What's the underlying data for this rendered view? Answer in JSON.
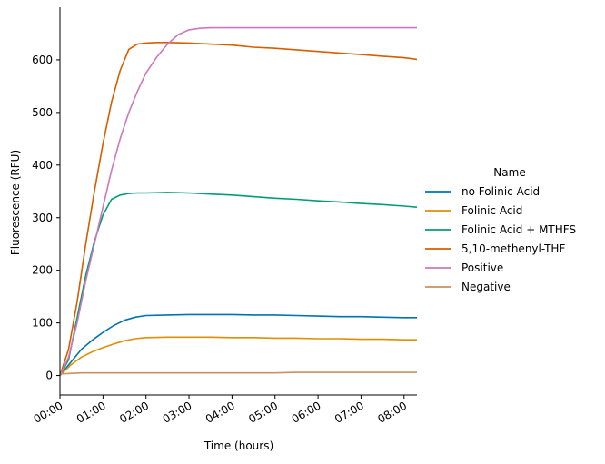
{
  "chart_data": {
    "type": "line",
    "xlabel": "Time (hours)",
    "ylabel": "Fluorescence (RFU)",
    "xlim": [
      0,
      8.3
    ],
    "ylim": [
      -37,
      700
    ],
    "x_ticks": [
      0,
      1,
      2,
      3,
      4,
      5,
      6,
      7,
      8
    ],
    "x_tick_labels": [
      "00:00",
      "01:00",
      "02:00",
      "03:00",
      "04:00",
      "05:00",
      "06:00",
      "07:00",
      "08:00"
    ],
    "y_ticks": [
      0,
      100,
      200,
      300,
      400,
      500,
      600
    ],
    "y_tick_labels": [
      "0",
      "100",
      "200",
      "300",
      "400",
      "500",
      "600"
    ],
    "legend": {
      "title": "Name",
      "placement": "right"
    },
    "series": [
      {
        "name": "no Folinic Acid",
        "color": "#0173b2",
        "x": [
          0,
          0.25,
          0.5,
          0.75,
          1.0,
          1.25,
          1.5,
          1.75,
          2.0,
          2.5,
          3.0,
          3.5,
          4.0,
          4.5,
          5.0,
          5.5,
          6.0,
          6.5,
          7.0,
          7.5,
          8.0,
          8.3
        ],
        "y": [
          0,
          25,
          50,
          67,
          82,
          95,
          105,
          111,
          114,
          115,
          116,
          116,
          116,
          115,
          115,
          114,
          113,
          112,
          112,
          111,
          110,
          110
        ]
      },
      {
        "name": "Folinic Acid",
        "color": "#de8f05",
        "x": [
          0,
          0.25,
          0.5,
          0.75,
          1.0,
          1.25,
          1.5,
          1.75,
          2.0,
          2.5,
          3.0,
          3.5,
          4.0,
          4.5,
          5.0,
          5.5,
          6.0,
          6.5,
          7.0,
          7.5,
          8.0,
          8.3
        ],
        "y": [
          0,
          20,
          35,
          45,
          53,
          60,
          66,
          70,
          72,
          73,
          73,
          73,
          72,
          72,
          71,
          71,
          70,
          70,
          69,
          69,
          68,
          68
        ]
      },
      {
        "name": "Folinic Acid + MTHFS",
        "color": "#029e73",
        "x": [
          0,
          0.2,
          0.4,
          0.6,
          0.8,
          1.0,
          1.2,
          1.4,
          1.6,
          1.8,
          2.0,
          2.5,
          3.0,
          3.5,
          4.0,
          4.5,
          5.0,
          5.5,
          6.0,
          6.5,
          7.0,
          7.5,
          8.0,
          8.3
        ],
        "y": [
          0,
          30,
          110,
          190,
          255,
          305,
          335,
          343,
          346,
          347,
          347,
          348,
          347,
          345,
          343,
          340,
          337,
          335,
          332,
          330,
          327,
          325,
          322,
          320
        ]
      },
      {
        "name": "5,10-methenyl-THF",
        "color": "#d55e00",
        "x": [
          0,
          0.2,
          0.4,
          0.6,
          0.8,
          1.0,
          1.2,
          1.4,
          1.6,
          1.8,
          2.0,
          2.25,
          2.5,
          3.0,
          3.5,
          4.0,
          4.5,
          5.0,
          5.5,
          6.0,
          6.5,
          7.0,
          7.5,
          8.0,
          8.3
        ],
        "y": [
          0,
          50,
          140,
          250,
          350,
          440,
          520,
          580,
          620,
          630,
          632,
          633,
          633,
          632,
          630,
          628,
          624,
          622,
          619,
          616,
          613,
          610,
          607,
          604,
          601
        ]
      },
      {
        "name": "Positive",
        "color": "#cc78bc",
        "x": [
          0,
          0.2,
          0.4,
          0.6,
          0.8,
          1.0,
          1.2,
          1.4,
          1.6,
          1.8,
          2.0,
          2.25,
          2.5,
          2.75,
          3.0,
          3.25,
          3.5,
          4.0,
          4.5,
          5.0,
          5.5,
          6.0,
          6.5,
          7.0,
          7.5,
          8.0,
          8.3
        ],
        "y": [
          0,
          35,
          100,
          180,
          250,
          320,
          390,
          450,
          500,
          540,
          575,
          605,
          630,
          648,
          657,
          660,
          661,
          661,
          661,
          661,
          661,
          661,
          661,
          661,
          661,
          661,
          661
        ]
      },
      {
        "name": "Negative",
        "color": "#ca9161",
        "x": [
          0,
          0.5,
          1.0,
          1.5,
          2.0,
          2.5,
          3.0,
          3.5,
          4.0,
          4.5,
          5.0,
          5.5,
          6.0,
          6.5,
          7.0,
          7.5,
          8.0,
          8.3
        ],
        "y": [
          3,
          5,
          5,
          5,
          5,
          5,
          5,
          5,
          5,
          5,
          5,
          6,
          6,
          6,
          6,
          6,
          6,
          6
        ]
      }
    ]
  }
}
